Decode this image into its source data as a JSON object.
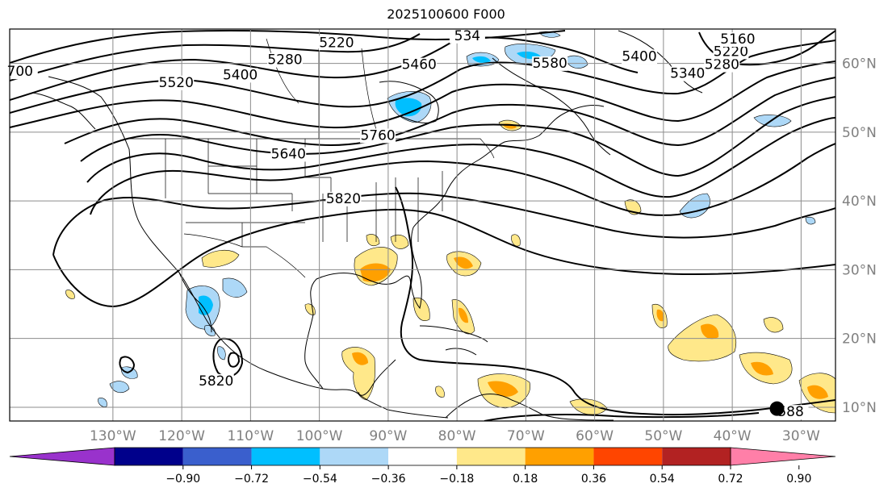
{
  "title": "2025100600 F000",
  "map": {
    "lon_range": [
      -145,
      -25
    ],
    "lat_range": [
      8,
      65
    ],
    "lon_ticks": [
      {
        "lon": -130,
        "label": "130°W"
      },
      {
        "lon": -120,
        "label": "120°W"
      },
      {
        "lon": -110,
        "label": "110°W"
      },
      {
        "lon": -100,
        "label": "100°W"
      },
      {
        "lon": -90,
        "label": "90°W"
      },
      {
        "lon": -80,
        "label": "80°W"
      },
      {
        "lon": -70,
        "label": "70°W"
      },
      {
        "lon": -60,
        "label": "60°W"
      },
      {
        "lon": -50,
        "label": "50°W"
      },
      {
        "lon": -40,
        "label": "40°W"
      },
      {
        "lon": -30,
        "label": "30°W"
      }
    ],
    "lat_ticks": [
      {
        "lat": 10,
        "label": "10°N"
      },
      {
        "lat": 20,
        "label": "20°N"
      },
      {
        "lat": 30,
        "label": "30°N"
      },
      {
        "lat": 40,
        "label": "40°N"
      },
      {
        "lat": 50,
        "label": "50°N"
      },
      {
        "lat": 60,
        "label": "60°N"
      }
    ],
    "contour_labels": [
      {
        "text": "5220",
        "lon": -97.5,
        "lat": 62.5
      },
      {
        "text": "5280",
        "lon": -105,
        "lat": 60.0
      },
      {
        "text": "5400",
        "lon": -111.5,
        "lat": 57.8
      },
      {
        "text": "5520",
        "lon": -120.8,
        "lat": 56.7
      },
      {
        "text": "700",
        "lon": -143.5,
        "lat": 58.3
      },
      {
        "text": "5460",
        "lon": -85.5,
        "lat": 59.3
      },
      {
        "text": "534",
        "lon": -78.5,
        "lat": 63.5
      },
      {
        "text": "5580",
        "lon": -66.5,
        "lat": 59.5
      },
      {
        "text": "5400",
        "lon": -53.5,
        "lat": 60.5
      },
      {
        "text": "5340",
        "lon": -46.5,
        "lat": 58.0
      },
      {
        "text": "5280",
        "lon": -41.5,
        "lat": 59.3
      },
      {
        "text": "5220",
        "lon": -40.2,
        "lat": 61.2
      },
      {
        "text": "5160",
        "lon": -39.2,
        "lat": 63.0
      },
      {
        "text": "5640",
        "lon": -104.5,
        "lat": 46.3
      },
      {
        "text": "5760",
        "lon": -91.5,
        "lat": 49.0
      },
      {
        "text": "5820",
        "lon": -96.5,
        "lat": 39.8
      },
      {
        "text": "5820",
        "lon": -115,
        "lat": 13.3
      },
      {
        "text": "588",
        "lon": -31.5,
        "lat": 8.8
      }
    ],
    "high_marker": {
      "lon": -33.5,
      "lat": 9.8
    }
  },
  "colorbar": {
    "colors": [
      "#9932cc",
      "#00008b",
      "#3a5fcd",
      "#00bfff",
      "#add8f7",
      "#ffffff",
      "#ffe88a",
      "#ffa000",
      "#ff4500",
      "#b22222",
      "#ff7fa8"
    ],
    "ticks": [
      "−0.90",
      "−0.72",
      "−0.54",
      "−0.36",
      "−0.18",
      "0.18",
      "0.36",
      "0.54",
      "0.72",
      "0.90"
    ]
  }
}
